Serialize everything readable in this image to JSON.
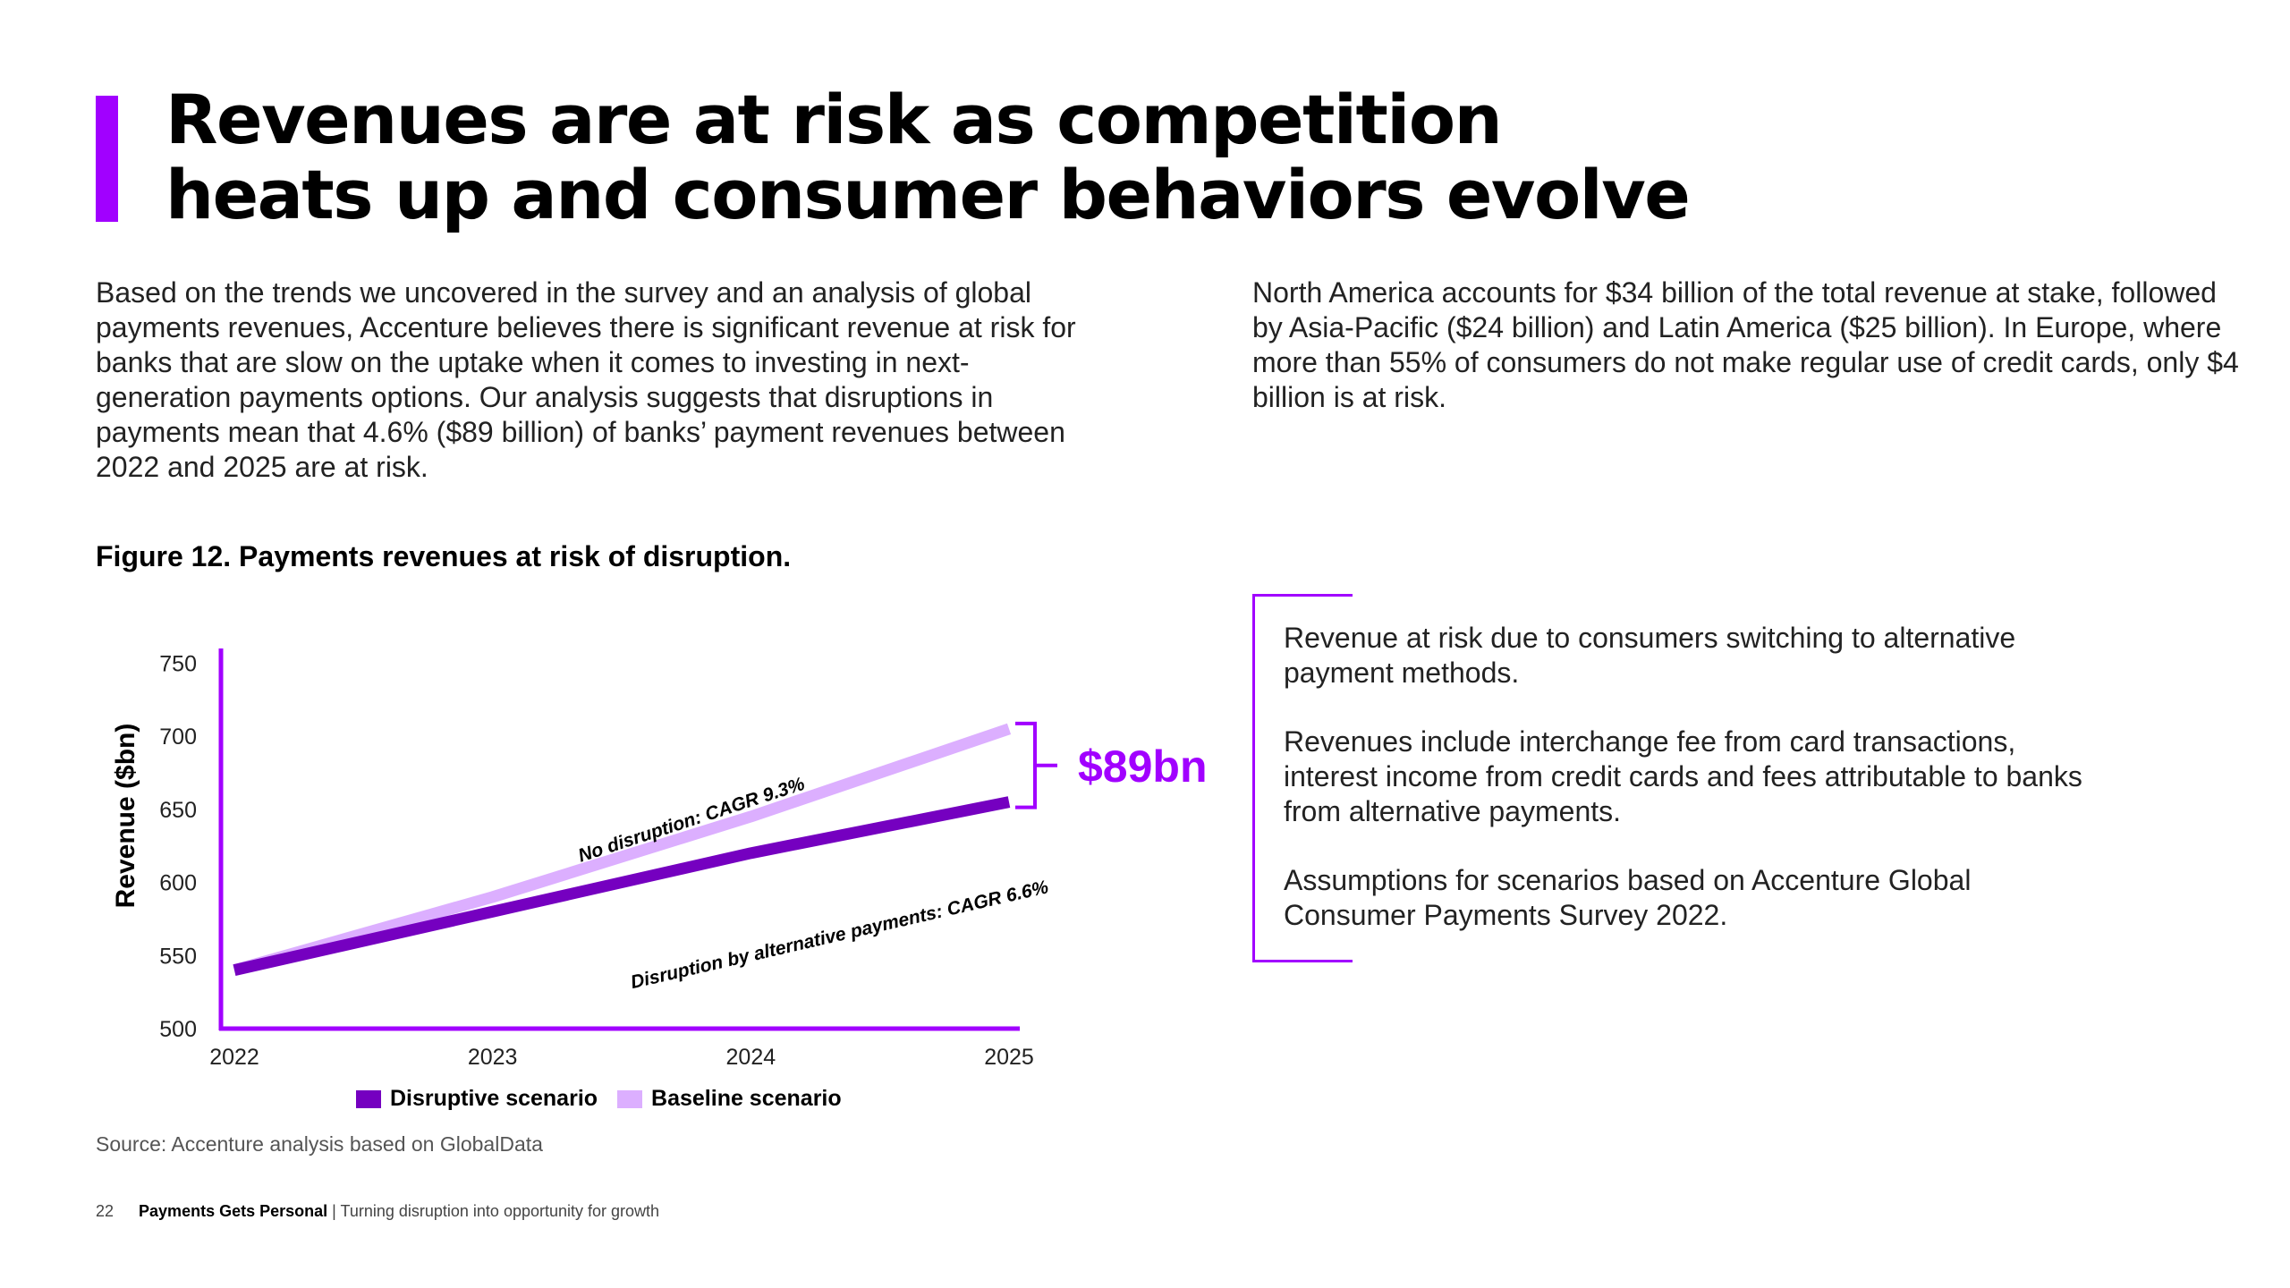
{
  "title": {
    "line1": "Revenues are at risk as competition",
    "line2": "heats up and consumer behaviors evolve"
  },
  "intro": {
    "left": "Based on the trends we uncovered in the survey and an analysis of global payments revenues, Accenture believes there is significant revenue at risk for banks that are slow on the uptake when it comes to investing in next-generation payments options. Our analysis suggests that disruptions in payments mean that 4.6% ($89 billion) of banks’ payment revenues between 2022 and 2025 are at risk.",
    "right": "North America accounts for $34 billion of the total revenue at stake, followed by Asia-Pacific ($24 billion) and Latin America ($25 billion). In Europe, where more than 55% of consumers do not make regular use of credit cards, only $4 billion is at risk."
  },
  "figure_title": "Figure 12. Payments revenues at risk of disruption.",
  "chart_data": {
    "type": "line",
    "title": "Figure 12. Payments revenues at risk of disruption.",
    "xlabel": "",
    "ylabel": "Revenue ($bn)",
    "categories": [
      "2022",
      "2023",
      "2024",
      "2025"
    ],
    "yticks": [
      500,
      550,
      600,
      650,
      700,
      750
    ],
    "ylim": [
      500,
      760
    ],
    "series": [
      {
        "name": "Disruptive scenario",
        "color": "#7500c0",
        "values": [
          540,
          580,
          620,
          655
        ]
      },
      {
        "name": "Baseline scenario",
        "color": "#dcafff",
        "values": [
          540,
          590,
          645,
          705
        ]
      }
    ],
    "annotations": {
      "baseline": "No disruption: CAGR 9.3%",
      "disruptive": "Disruption by alternative payments: CAGR 6.6%",
      "gap": "$89bn"
    },
    "legend_position": "bottom"
  },
  "source": "Source: Accenture analysis based on GlobalData",
  "notes": [
    "Revenue at risk due to consumers switching to alternative payment methods.",
    "Revenues include interchange fee from card transactions, interest income from credit cards and fees attributable to banks from alternative payments.",
    "Assumptions for scenarios based on Accenture Global Consumer Payments Survey 2022."
  ],
  "footer": {
    "page_number": "22",
    "doc_title": "Payments Gets Personal",
    "subtitle": "| Turning disruption into opportunity for growth"
  },
  "colors": {
    "accent": "#a100ff",
    "dark_purple": "#7500c0",
    "light_purple": "#dcafff"
  }
}
